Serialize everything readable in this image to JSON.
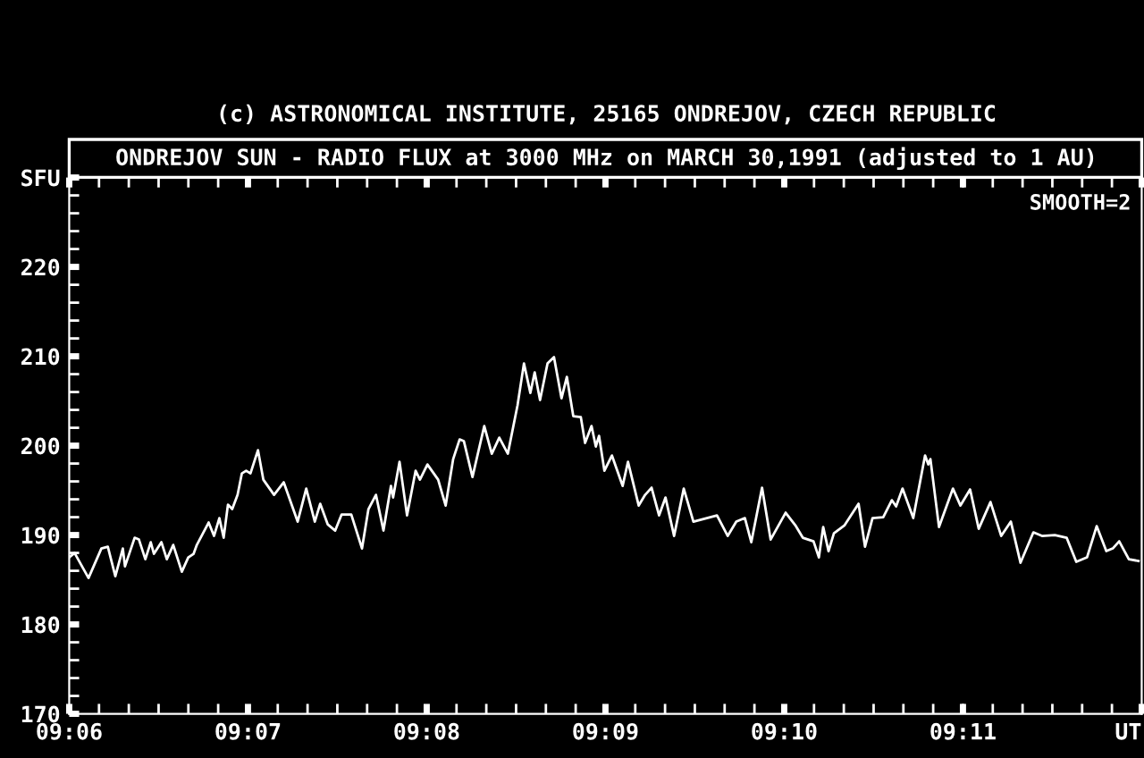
{
  "chart_data": {
    "type": "line",
    "title": "(c) ASTRONOMICAL INSTITUTE, 25165 ONDREJOV, CZECH REPUBLIC",
    "subtitle": "ONDREJOV SUN - RADIO FLUX at 3000 MHz on MARCH 30,1991 (adjusted to 1 AU)",
    "annotations": [
      "SMOOTH=2"
    ],
    "xlim": [
      9.1,
      9.2
    ],
    "ylim": [
      170,
      230
    ],
    "xticks": [
      {
        "value": 9.1,
        "label": "09:06"
      },
      {
        "value": 9.116667,
        "label": "09:07"
      },
      {
        "value": 9.133333,
        "label": "09:08"
      },
      {
        "value": 9.15,
        "label": "09:09"
      },
      {
        "value": 9.166667,
        "label": "09:10"
      },
      {
        "value": 9.183333,
        "label": "09:11"
      },
      {
        "value": 9.2,
        "label": "UT"
      }
    ],
    "yticks": [
      170,
      180,
      190,
      200,
      210,
      220,
      {
        "value": 230,
        "label": "SFU"
      }
    ],
    "grid": false,
    "marker": "none",
    "line_style": "solid",
    "series": [
      {
        "color": "#ffffff",
        "x": [
          9.1,
          9.1005,
          9.1018,
          9.103,
          9.1036,
          9.1043,
          9.105,
          9.1052,
          9.1061,
          9.1065,
          9.1071,
          9.1076,
          9.1079,
          9.1086,
          9.1091,
          9.1097,
          9.1105,
          9.1111,
          9.1116,
          9.1119,
          9.113,
          9.1135,
          9.114,
          9.1144,
          9.1148,
          9.1152,
          9.1157,
          9.1161,
          9.1165,
          9.1169,
          9.1176,
          9.1181,
          9.1191,
          9.12,
          9.1213,
          9.1221,
          9.1229,
          9.1234,
          9.1241,
          9.1248,
          9.1254,
          9.1263,
          9.1273,
          9.1279,
          9.1286,
          9.1293,
          9.13,
          9.1302,
          9.1308,
          9.1315,
          9.1323,
          9.1327,
          9.1334,
          9.1344,
          9.1351,
          9.1358,
          9.1364,
          9.1368,
          9.1376,
          9.1387,
          9.1394,
          9.1401,
          9.1409,
          9.1418,
          9.1424,
          9.143,
          9.1434,
          9.1439,
          9.1446,
          9.1452,
          9.1459,
          9.1464,
          9.147,
          9.1477,
          9.1481,
          9.1487,
          9.1491,
          9.1494,
          9.1499,
          9.1506,
          9.1516,
          9.1521,
          9.1531,
          9.1537,
          9.1543,
          9.155,
          9.1556,
          9.1564,
          9.1573,
          9.1582,
          9.1604,
          9.1614,
          9.1622,
          9.163,
          9.1636,
          9.1646,
          9.1654,
          9.1668,
          9.1677,
          9.1684,
          9.1694,
          9.1699,
          9.1703,
          9.1708,
          9.1713,
          9.1723,
          9.1736,
          9.1742,
          9.1749,
          9.1759,
          9.1767,
          9.1771,
          9.1777,
          9.1787,
          9.1798,
          9.1801,
          9.1803,
          9.1811,
          9.1824,
          9.1831,
          9.184,
          9.1848,
          9.1859,
          9.1869,
          9.1878,
          9.1887,
          9.1899,
          9.1907,
          9.1919,
          9.193,
          9.1939,
          9.1949,
          9.1958,
          9.1967,
          9.1973,
          9.1979,
          9.1988,
          9.1997
        ],
        "values": [
          187.5,
          188.0,
          185.2,
          188.5,
          188.7,
          185.4,
          188.5,
          186.5,
          189.7,
          189.5,
          187.3,
          189.2,
          187.9,
          189.2,
          187.3,
          188.9,
          185.9,
          187.5,
          187.9,
          188.9,
          191.4,
          189.9,
          191.9,
          189.7,
          193.4,
          192.9,
          194.5,
          196.9,
          197.2,
          196.9,
          199.5,
          196.2,
          194.5,
          195.9,
          191.5,
          195.2,
          191.5,
          193.5,
          191.2,
          190.5,
          192.3,
          192.3,
          188.5,
          192.9,
          194.5,
          190.5,
          195.5,
          194.2,
          198.2,
          192.2,
          197.2,
          196.2,
          197.9,
          196.2,
          193.3,
          198.5,
          200.7,
          200.5,
          196.5,
          202.2,
          199.1,
          200.9,
          199.1,
          204.5,
          209.2,
          205.9,
          208.2,
          205.1,
          209.2,
          209.9,
          205.3,
          207.7,
          203.3,
          203.2,
          200.3,
          202.2,
          199.9,
          201.1,
          197.2,
          198.9,
          195.5,
          198.2,
          193.3,
          194.5,
          195.3,
          192.2,
          194.2,
          189.9,
          195.2,
          191.5,
          192.2,
          189.9,
          191.5,
          191.9,
          189.2,
          195.3,
          189.5,
          192.5,
          191.1,
          189.7,
          189.3,
          187.5,
          190.9,
          188.2,
          190.2,
          191.1,
          193.5,
          188.7,
          191.9,
          192.0,
          193.9,
          193.2,
          195.2,
          191.9,
          198.9,
          197.9,
          198.5,
          190.9,
          195.2,
          193.3,
          195.1,
          190.7,
          193.7,
          189.9,
          191.5,
          186.9,
          190.3,
          189.9,
          190.0,
          189.7,
          187.0,
          187.5,
          191.0,
          188.2,
          188.5,
          189.3,
          187.3,
          187.1
        ]
      }
    ]
  }
}
